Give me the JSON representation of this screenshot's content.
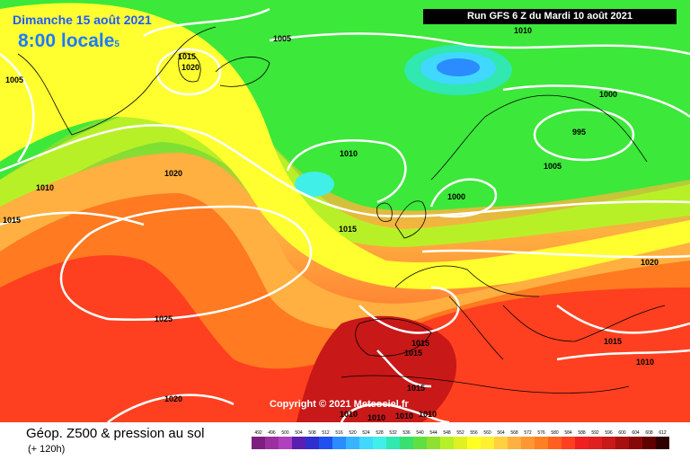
{
  "header": {
    "date": "Dimanche 15 août 2021",
    "time": "8:00 locale",
    "time_suffix": "5",
    "run": "Run GFS 6 Z du Mardi 10 août 2021"
  },
  "footer": {
    "title": "Géop. Z500 & pression au sol",
    "subtitle": "(+ 120h)",
    "copyright": "Copyright © 2021 Meteociel.fr"
  },
  "isobar_labels": [
    {
      "text": "1005",
      "region": "north-atlantic"
    },
    {
      "text": "1015",
      "region": "iceland"
    },
    {
      "text": "1020",
      "region": "iceland"
    },
    {
      "text": "1005",
      "region": "greenland-west"
    },
    {
      "text": "1010",
      "region": "norway-sea"
    },
    {
      "text": "1000",
      "region": "sweden"
    },
    {
      "text": "995",
      "region": "baltic"
    },
    {
      "text": "1005",
      "region": "baltic-south"
    },
    {
      "text": "1010",
      "region": "north-sea"
    },
    {
      "text": "1000",
      "region": "denmark"
    },
    {
      "text": "1020",
      "region": "mid-atlantic"
    },
    {
      "text": "1010",
      "region": "west-atlantic"
    },
    {
      "text": "1015",
      "region": "west-edge"
    },
    {
      "text": "1015",
      "region": "ireland"
    },
    {
      "text": "1020",
      "region": "east-europe"
    },
    {
      "text": "1025",
      "region": "azores"
    },
    {
      "text": "1015",
      "region": "iberia-1"
    },
    {
      "text": "1015",
      "region": "iberia-2"
    },
    {
      "text": "1015",
      "region": "balkans"
    },
    {
      "text": "1010",
      "region": "greece"
    },
    {
      "text": "1015",
      "region": "north-africa"
    },
    {
      "text": "1020",
      "region": "canaries"
    },
    {
      "text": "1010",
      "region": "sahara-1"
    },
    {
      "text": "1010",
      "region": "sahara-2"
    },
    {
      "text": "1010",
      "region": "sahara-3"
    },
    {
      "text": "1010",
      "region": "sahara-4"
    }
  ],
  "legend": {
    "values": [
      "492",
      "496",
      "500",
      "504",
      "508",
      "512",
      "516",
      "520",
      "524",
      "528",
      "532",
      "536",
      "540",
      "544",
      "548",
      "552",
      "556",
      "560",
      "564",
      "568",
      "572",
      "576",
      "580",
      "584",
      "588",
      "592",
      "596",
      "600",
      "604",
      "608",
      "612"
    ],
    "colors": [
      "#7d1f7f",
      "#9b2fa0",
      "#b040c0",
      "#5a1fb0",
      "#2f2fd0",
      "#2050f0",
      "#2a8cff",
      "#38b4ff",
      "#40d8ff",
      "#40f0e8",
      "#30e8b0",
      "#38e070",
      "#60e040",
      "#90e030",
      "#b8f028",
      "#e0f020",
      "#ffff20",
      "#fff030",
      "#ffd040",
      "#ffb040",
      "#ff9830",
      "#ff8020",
      "#ff6020",
      "#ff4020",
      "#f02020",
      "#e02020",
      "#c81818",
      "#a81010",
      "#880808",
      "#600000",
      "#300000"
    ]
  }
}
